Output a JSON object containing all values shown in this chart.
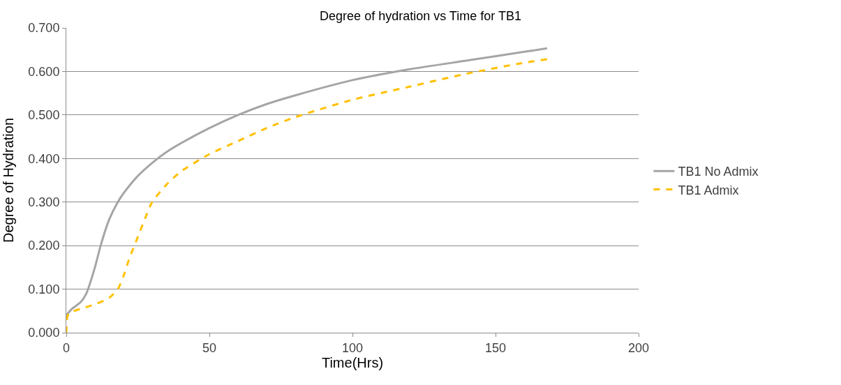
{
  "chart_data": {
    "type": "line",
    "title": "Degree of hydration vs Time for TB1",
    "xlabel": "Time(Hrs)",
    "ylabel": "Degree of Hydration",
    "xlim": [
      0,
      200
    ],
    "xticks": [
      0,
      50,
      100,
      150,
      200
    ],
    "ylim": [
      0,
      0.7
    ],
    "yticks": [
      {
        "value": 0,
        "label": "0.000"
      },
      {
        "value": 0.1,
        "label": "0.100"
      },
      {
        "value": 0.2,
        "label": "0.200"
      },
      {
        "value": 0.3,
        "label": "0.300"
      },
      {
        "value": 0.4,
        "label": "0.400"
      },
      {
        "value": 0.5,
        "label": "0.500"
      },
      {
        "value": 0.6,
        "label": "0.600"
      },
      {
        "value": 0.7,
        "label": "0.700"
      }
    ],
    "grid": "y",
    "legend": "right",
    "marker": "none",
    "series": [
      {
        "name": "TB1 No Admix",
        "color": "#a5a5a5",
        "line_style": "solid",
        "x": [
          0,
          2,
          5,
          7,
          10,
          12,
          15,
          18,
          20,
          25,
          30,
          35,
          40,
          50,
          60,
          70,
          80,
          100,
          120,
          140,
          160,
          168
        ],
        "values": [
          0.04,
          0.055,
          0.07,
          0.09,
          0.15,
          0.2,
          0.26,
          0.3,
          0.32,
          0.36,
          0.39,
          0.415,
          0.435,
          0.47,
          0.5,
          0.525,
          0.545,
          0.58,
          0.605,
          0.625,
          0.645,
          0.653
        ]
      },
      {
        "name": "TB1 Admix",
        "color": "#ffc000",
        "line_style": "dashed",
        "x": [
          0,
          0.3,
          1,
          5,
          10,
          15,
          18,
          20,
          22,
          25,
          28,
          30,
          35,
          40,
          50,
          60,
          70,
          80,
          100,
          120,
          140,
          160,
          168
        ],
        "values": [
          0,
          0.035,
          0.045,
          0.055,
          0.065,
          0.08,
          0.1,
          0.13,
          0.17,
          0.22,
          0.27,
          0.3,
          0.34,
          0.37,
          0.41,
          0.44,
          0.47,
          0.495,
          0.535,
          0.565,
          0.595,
          0.62,
          0.628
        ]
      }
    ]
  }
}
